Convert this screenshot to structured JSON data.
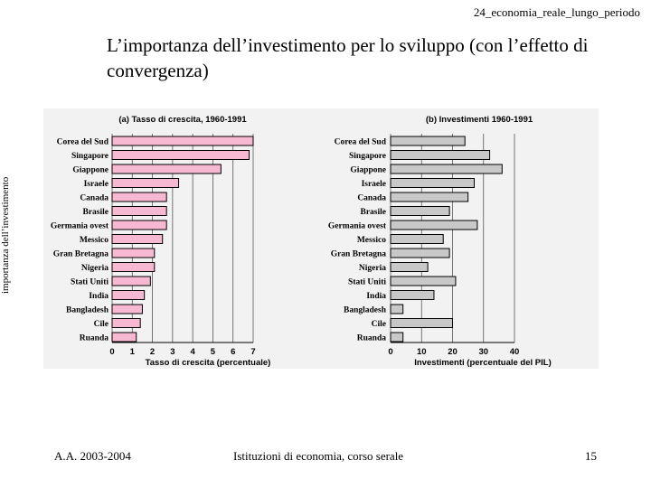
{
  "header": {
    "tag": "24_economia_reale_lungo_periodo"
  },
  "slide": {
    "title": "L’importanza dell’investimento per lo sviluppo (con l’effetto di convergenza)",
    "side_label": "importanza dell’investimento"
  },
  "footer": {
    "left": "A.A. 2003-2004",
    "center": "Istituzioni di economia, corso serale",
    "page": "15"
  },
  "colors": {
    "growth_bars": "#f7b8d2",
    "investment_bars": "#c8c8c8"
  },
  "chart_data": [
    {
      "type": "bar",
      "orientation": "horizontal",
      "title": "(a) Tasso di crescita, 1960-1991",
      "xlabel": "Tasso di crescita (percentuale)",
      "categories": [
        "Corea del Sud",
        "Singapore",
        "Giappone",
        "Israele",
        "Canada",
        "Brasile",
        "Germania ovest",
        "Messico",
        "Gran Bretagna",
        "Nigeria",
        "Stati Uniti",
        "India",
        "Bangladesh",
        "Cile",
        "Ruanda"
      ],
      "values": [
        7.0,
        6.8,
        5.4,
        3.3,
        2.7,
        2.7,
        2.7,
        2.5,
        2.1,
        2.1,
        1.9,
        1.6,
        1.5,
        1.4,
        1.2
      ],
      "xlim": [
        0,
        7
      ],
      "ticks": [
        "0",
        "1",
        "2",
        "3",
        "4",
        "5",
        "6",
        "7"
      ],
      "grid": true
    },
    {
      "type": "bar",
      "orientation": "horizontal",
      "title": "(b) Investimenti 1960-1991",
      "xlabel": "Investimenti (percentuale del PIL)",
      "categories": [
        "Corea del Sud",
        "Singapore",
        "Giappone",
        "Israele",
        "Canada",
        "Brasile",
        "Germania ovest",
        "Messico",
        "Gran Bretagna",
        "Nigeria",
        "Stati Uniti",
        "India",
        "Bangladesh",
        "Cile",
        "Ruanda"
      ],
      "values": [
        24,
        32,
        36,
        27,
        25,
        19,
        28,
        17,
        19,
        12,
        21,
        14,
        4,
        20,
        4
      ],
      "xlim": [
        0,
        40
      ],
      "ticks": [
        "0",
        "10",
        "20",
        "30",
        "40"
      ],
      "grid": true
    }
  ]
}
